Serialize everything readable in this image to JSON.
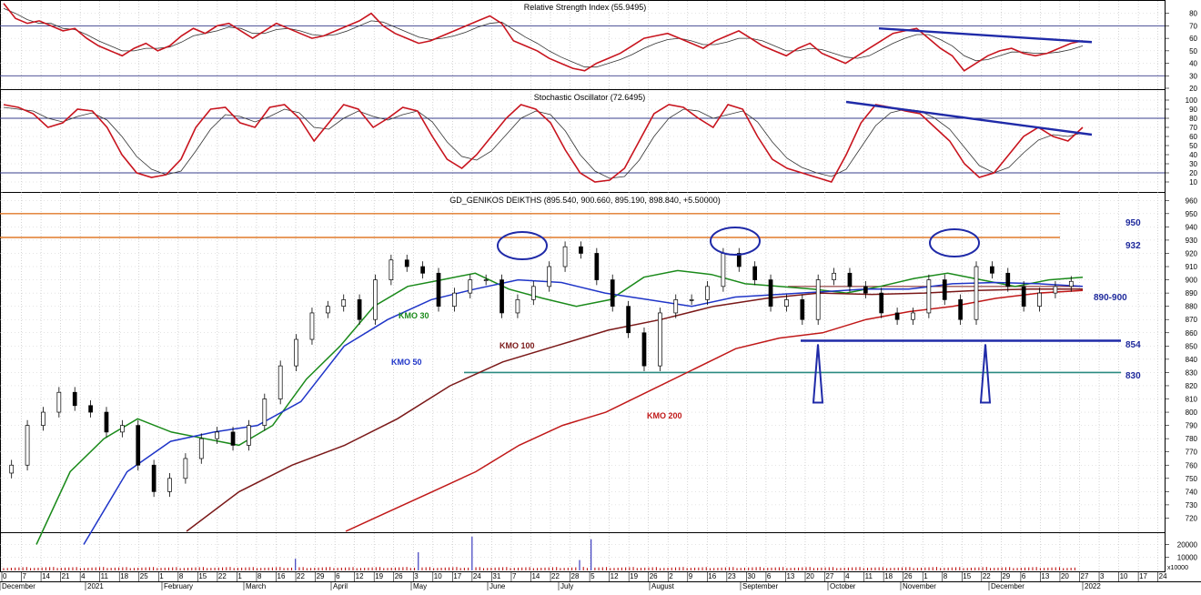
{
  "panels": {
    "rsi": {
      "title": "Relative Strength Index (55.9495)",
      "ticks": [
        "80",
        "70",
        "60",
        "50",
        "40",
        "30",
        "20"
      ]
    },
    "stoch": {
      "title": "Stochastic Oscillator (72.6495)",
      "ticks": [
        "100",
        "90",
        "80",
        "70",
        "60",
        "50",
        "40",
        "30",
        "20",
        "10"
      ]
    },
    "price": {
      "title": "GD_GENIKOS DEIKTHS (895.540, 900.660, 895.190, 898.840, +5.50000)",
      "ticks": [
        "960",
        "950",
        "940",
        "930",
        "920",
        "910",
        "900",
        "890",
        "880",
        "870",
        "860",
        "850",
        "840",
        "830",
        "820",
        "810",
        "800",
        "790",
        "780",
        "770",
        "760",
        "750",
        "740",
        "730",
        "720"
      ]
    },
    "volume": {
      "ticks": [
        "20000",
        "10000"
      ],
      "unit": "x10000"
    }
  },
  "xaxis": {
    "days": [
      "0",
      "7",
      "14",
      "21",
      "4",
      "11",
      "18",
      "25",
      "1",
      "8",
      "15",
      "22",
      "1",
      "8",
      "16",
      "22",
      "29",
      "6",
      "12",
      "19",
      "26",
      "3",
      "10",
      "17",
      "24",
      "31",
      "7",
      "14",
      "22",
      "28",
      "5",
      "12",
      "19",
      "26",
      "2",
      "9",
      "16",
      "23",
      "30",
      "6",
      "13",
      "20",
      "27",
      "4",
      "11",
      "18",
      "26",
      "1",
      "8",
      "15",
      "22",
      "29",
      "6",
      "13",
      "20",
      "27",
      "3",
      "10",
      "17",
      "24",
      "31"
    ],
    "months": [
      "December",
      "2021",
      "February",
      "March",
      "April",
      "May",
      "June",
      "July",
      "August",
      "September",
      "October",
      "November",
      "December",
      "2022"
    ]
  },
  "annotations": {
    "levels": [
      "950",
      "932",
      "890-900",
      "854",
      "830"
    ],
    "ma_labels": [
      "KMO 30",
      "KMO 50",
      "KMO 100",
      "KMO 200"
    ]
  },
  "chart_data": [
    {
      "type": "line",
      "title": "Relative Strength Index (55.9495)",
      "ylim": [
        20,
        90
      ],
      "reference_lines": [
        70,
        30
      ],
      "series": [
        {
          "values": [
            88,
            76,
            72,
            74,
            70,
            66,
            68,
            60,
            54,
            50,
            46,
            52,
            56,
            50,
            54,
            62,
            68,
            64,
            70,
            72,
            66,
            60,
            66,
            72,
            68,
            64,
            60,
            62,
            66,
            70,
            74,
            80,
            70,
            64,
            60,
            56,
            58,
            62,
            66,
            70,
            74,
            78,
            72,
            58,
            54,
            50,
            44,
            40,
            36,
            34,
            40,
            44,
            48,
            54,
            60,
            62,
            64,
            60,
            56,
            52,
            58,
            62,
            66,
            60,
            54,
            50,
            46,
            52,
            56,
            48,
            44,
            40,
            46,
            52,
            58,
            64,
            66,
            68,
            60,
            52,
            46,
            34,
            40,
            46,
            50,
            52,
            48,
            46,
            48,
            52,
            56,
            58
          ]
        },
        {
          "values": [
            84,
            80,
            75,
            72,
            72,
            68,
            67,
            63,
            58,
            54,
            50,
            50,
            52,
            52,
            53,
            57,
            62,
            64,
            66,
            69,
            68,
            64,
            64,
            67,
            68,
            66,
            63,
            62,
            63,
            66,
            70,
            74,
            73,
            69,
            65,
            61,
            59,
            60,
            62,
            65,
            69,
            72,
            73,
            67,
            61,
            56,
            50,
            45,
            41,
            37,
            37,
            40,
            43,
            47,
            52,
            56,
            59,
            60,
            58,
            55,
            55,
            57,
            60,
            60,
            58,
            54,
            50,
            50,
            52,
            51,
            48,
            45,
            44,
            46,
            51,
            56,
            60,
            63,
            63,
            59,
            54,
            46,
            42,
            43,
            46,
            49,
            49,
            48,
            48,
            49,
            51,
            54
          ]
        }
      ],
      "trendline": {
        "from": 68,
        "to": 57
      }
    },
    {
      "type": "line",
      "title": "Stochastic Oscillator (72.6495)",
      "ylim": [
        0,
        110
      ],
      "reference_lines": [
        80,
        20
      ],
      "series": [
        {
          "values": [
            95,
            92,
            85,
            70,
            75,
            90,
            88,
            70,
            40,
            20,
            15,
            18,
            35,
            70,
            90,
            92,
            75,
            70,
            92,
            95,
            80,
            55,
            75,
            95,
            90,
            70,
            80,
            92,
            88,
            60,
            35,
            25,
            40,
            60,
            80,
            95,
            90,
            75,
            45,
            20,
            10,
            12,
            25,
            55,
            85,
            95,
            92,
            80,
            70,
            95,
            90,
            60,
            35,
            25,
            20,
            15,
            10,
            40,
            75,
            95,
            92,
            88,
            85,
            70,
            55,
            30,
            15,
            20,
            40,
            60,
            70,
            60,
            55,
            70
          ]
        },
        {
          "values": [
            92,
            90,
            88,
            80,
            76,
            82,
            86,
            78,
            60,
            38,
            24,
            18,
            22,
            44,
            68,
            84,
            82,
            76,
            82,
            90,
            86,
            70,
            68,
            80,
            88,
            82,
            78,
            84,
            88,
            76,
            54,
            38,
            34,
            44,
            62,
            80,
            88,
            84,
            66,
            40,
            22,
            14,
            16,
            34,
            60,
            80,
            90,
            88,
            80,
            84,
            88,
            76,
            54,
            36,
            26,
            20,
            16,
            24,
            48,
            72,
            86,
            90,
            88,
            80,
            68,
            48,
            28,
            20,
            26,
            42,
            56,
            62,
            60,
            64
          ]
        }
      ],
      "trendline": {
        "from": 98,
        "to": 62
      }
    },
    {
      "type": "candlestick",
      "title": "GD_GENIKOS DEIKTHS (895.540, 900.660, 895.190, 898.840, +5.50000)",
      "ylim": [
        710,
        965
      ],
      "last": {
        "open": 895.54,
        "high": 900.66,
        "low": 895.19,
        "close": 898.84,
        "change": 5.5
      },
      "close": [
        760,
        790,
        800,
        815,
        805,
        800,
        785,
        790,
        760,
        740,
        750,
        765,
        780,
        785,
        775,
        790,
        810,
        835,
        855,
        875,
        880,
        885,
        870,
        900,
        915,
        910,
        905,
        880,
        890,
        900,
        900,
        875,
        885,
        895,
        910,
        925,
        920,
        900,
        880,
        860,
        835,
        875,
        885,
        885,
        895,
        920,
        910,
        900,
        880,
        885,
        870,
        900,
        905,
        895,
        890,
        875,
        870,
        875,
        900,
        885,
        870,
        910,
        905,
        895,
        880,
        890,
        895,
        898.84
      ],
      "moving_averages": [
        {
          "name": "KMO 30",
          "values": [
            700,
            755,
            780,
            795,
            785,
            780,
            775,
            790,
            825,
            850,
            880,
            895,
            900,
            905,
            893,
            886,
            880,
            885,
            902,
            907,
            904,
            897,
            895,
            893,
            890,
            895,
            901,
            905,
            900,
            895,
            900,
            902
          ]
        },
        {
          "name": "KMO 50",
          "values": [
            700,
            755,
            778,
            785,
            790,
            808,
            850,
            870,
            885,
            893,
            900,
            898,
            890,
            885,
            880,
            887,
            889,
            891,
            893,
            893,
            897,
            898,
            897,
            895
          ]
        },
        {
          "name": "KMO 100",
          "values": [
            710,
            740,
            760,
            775,
            795,
            820,
            838,
            850,
            862,
            870,
            880,
            886,
            890,
            889,
            890,
            892,
            893,
            893
          ]
        },
        {
          "name": "KMO 200",
          "values": [
            710,
            725,
            740,
            755,
            775,
            790,
            800,
            816,
            832,
            848,
            856,
            860,
            870,
            876,
            880,
            886,
            890,
            892
          ]
        }
      ],
      "horizontal_levels": [
        950,
        932,
        854,
        830
      ]
    },
    {
      "type": "bar",
      "title": "",
      "ylim": [
        0,
        28000
      ]
    }
  ]
}
